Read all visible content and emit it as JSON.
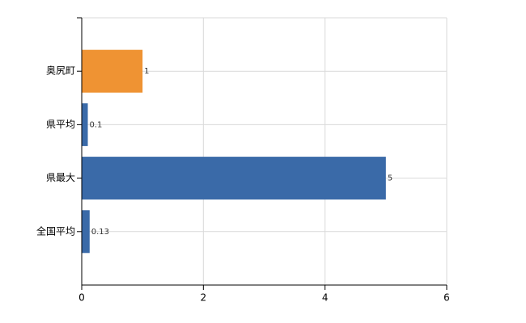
{
  "chart_data": {
    "type": "bar",
    "orientation": "horizontal",
    "categories": [
      "奥尻町",
      "県平均",
      "県最大",
      "全国平均"
    ],
    "values": [
      1,
      0.1,
      5,
      0.13
    ],
    "colors": [
      "#ef9333",
      "#3a6aa8",
      "#3a6aa8",
      "#3a6aa8"
    ],
    "xlim": [
      0,
      6
    ],
    "xticks": [
      0,
      2,
      4,
      6
    ],
    "grid": true
  }
}
